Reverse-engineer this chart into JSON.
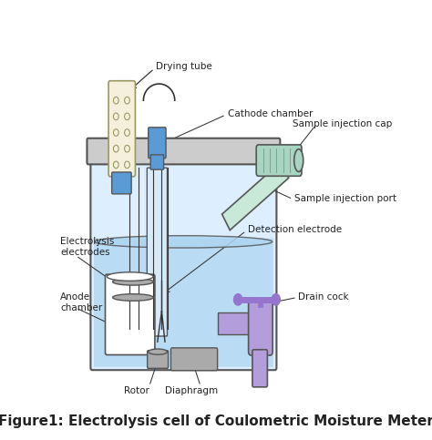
{
  "title": "Figure1: Electrolysis cell of Coulometric Moisture Meter",
  "title_fontsize": 11,
  "labels": {
    "drying_tube": "Drying tube",
    "cathode_chamber": "Cathode chamber",
    "sample_injection_cap": "Sample injection cap",
    "sample_injection_port": "Sample injection port",
    "detection_electrode": "Detection electrode",
    "drain_cock": "Drain cock",
    "electrolysis_electrodes": "Electrolysis\nelectrodes",
    "anode_chamber": "Anode\nchamber",
    "rotor": "Rotor",
    "diaphragm": "Diaphragm"
  },
  "colors": {
    "bg_color": "#ffffff",
    "vessel_outline": "#555555",
    "vessel_fill": "#ddeeff",
    "liquid_fill": "#aed6f1",
    "lid_fill": "#cccccc",
    "drying_tube_fill": "#f5f0dc",
    "drying_tube_outline": "#999966",
    "blue_stopper": "#5b9bd5",
    "cathode_inner": "#d6eaf8",
    "injection_cap_fill": "#a8d5c2",
    "injection_body": "#c8e8d8",
    "drain_cock_fill": "#b39ddb",
    "drain_handle": "#9575cd",
    "electrode_disk": "#aaaaaa",
    "anode_body": "#aaaaaa",
    "line_color": "#333333",
    "text_color": "#222222",
    "annotation_color": "#333333"
  },
  "figure_size": [
    4.74,
    4.83
  ],
  "dpi": 100
}
